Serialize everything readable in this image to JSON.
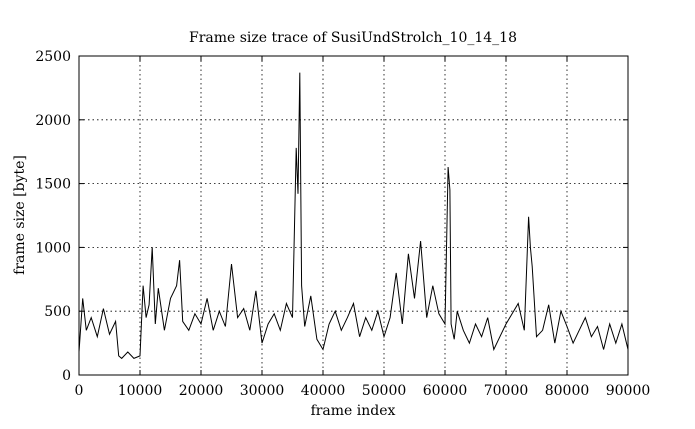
{
  "chart_data": {
    "type": "line",
    "title": "Frame size trace of SusiUndStrolch_10_14_18",
    "xlabel": "frame index",
    "ylabel": "frame size [byte]",
    "xlim": [
      0,
      90000
    ],
    "ylim": [
      0,
      2500
    ],
    "xticks": [
      0,
      10000,
      20000,
      30000,
      40000,
      50000,
      60000,
      70000,
      80000,
      90000
    ],
    "yticks": [
      0,
      500,
      1000,
      1500,
      2000,
      2500
    ],
    "grid": true,
    "legend": "none",
    "line_color": "#000000",
    "series": [
      {
        "x": [
          0,
          600,
          1200,
          2000,
          3000,
          4000,
          5000,
          6000,
          6500,
          7000,
          8000,
          9000,
          10000,
          10500,
          11000,
          11500,
          12000,
          12500,
          13000,
          14000,
          15000,
          16000,
          16500,
          17000,
          18000,
          19000,
          20000,
          21000,
          22000,
          23000,
          24000,
          25000,
          26000,
          27000,
          28000,
          29000,
          30000,
          31000,
          32000,
          33000,
          34000,
          35000,
          35600,
          35900,
          36200,
          36500,
          37000,
          38000,
          39000,
          40000,
          41000,
          42000,
          43000,
          44000,
          45000,
          46000,
          47000,
          48000,
          49000,
          50000,
          51000,
          52000,
          53000,
          54000,
          55000,
          56000,
          57000,
          58000,
          59000,
          60000,
          60500,
          60800,
          61000,
          61500,
          62000,
          63000,
          64000,
          65000,
          66000,
          67000,
          68000,
          69000,
          70000,
          71000,
          72000,
          73000,
          73700,
          74000,
          74300,
          75000,
          76000,
          77000,
          78000,
          79000,
          80000,
          81000,
          82000,
          83000,
          84000,
          85000,
          86000,
          87000,
          88000,
          89000,
          90000
        ],
        "values": [
          180,
          600,
          350,
          450,
          300,
          520,
          320,
          420,
          150,
          130,
          180,
          130,
          150,
          700,
          450,
          550,
          1000,
          400,
          680,
          350,
          600,
          700,
          900,
          420,
          350,
          480,
          400,
          600,
          350,
          500,
          380,
          870,
          450,
          520,
          350,
          660,
          250,
          400,
          480,
          350,
          560,
          450,
          1780,
          1420,
          2370,
          700,
          380,
          620,
          280,
          200,
          400,
          500,
          350,
          450,
          560,
          300,
          450,
          350,
          500,
          300,
          450,
          800,
          400,
          950,
          600,
          1050,
          450,
          700,
          480,
          400,
          1630,
          1450,
          400,
          280,
          500,
          350,
          250,
          400,
          300,
          450,
          200,
          300,
          400,
          480,
          560,
          350,
          1240,
          1000,
          850,
          300,
          350,
          550,
          250,
          500,
          380,
          250,
          350,
          450,
          300,
          380,
          200,
          400,
          250,
          400,
          200
        ]
      }
    ]
  }
}
